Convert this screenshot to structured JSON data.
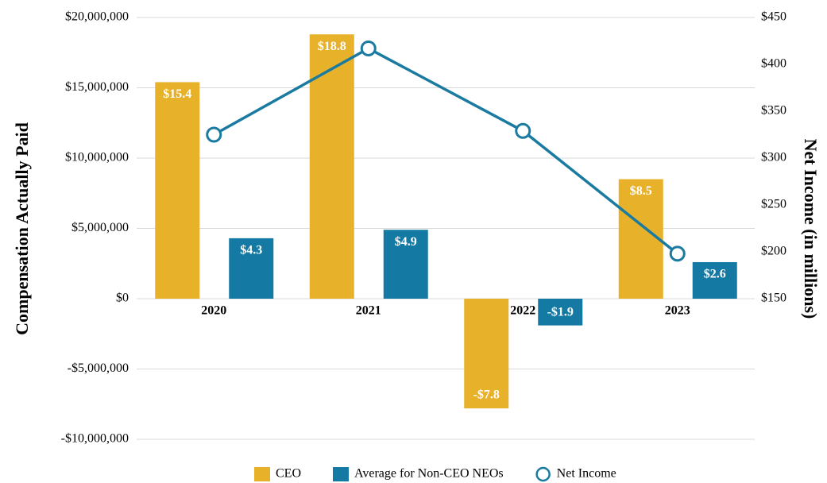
{
  "chart_data": {
    "type": "bar",
    "y_label": "Compensation Actually Paid",
    "y2_label": "Net Income (in millions)",
    "categories": [
      "2020",
      "2021",
      "2022",
      "2023"
    ],
    "series": [
      {
        "name": "CEO",
        "color": "#e8b12a",
        "values": [
          15400000,
          18800000,
          -7800000,
          8500000
        ],
        "value_labels": [
          "$15.4",
          "$18.8",
          "-$7.8",
          "$8.5"
        ]
      },
      {
        "name": "Average for Non-CEO NEOs",
        "color": "#1479a3",
        "values": [
          4300000,
          4900000,
          -1900000,
          2600000
        ],
        "value_labels": [
          "$4.3",
          "$4.9",
          "-$1.9",
          "$2.6"
        ]
      },
      {
        "name": "Net Income",
        "type": "line",
        "axis": "y2",
        "color": "#1a7aa0",
        "values": [
          325,
          417,
          329,
          198
        ]
      }
    ],
    "ylim": [
      -10000000,
      20000000
    ],
    "yticks": [
      {
        "value": -10000000,
        "label": "-$10,000,000"
      },
      {
        "value": -5000000,
        "label": "-$5,000,000"
      },
      {
        "value": 0,
        "label": "$0"
      },
      {
        "value": 5000000,
        "label": "$5,000,000"
      },
      {
        "value": 10000000,
        "label": "$10,000,000"
      },
      {
        "value": 15000000,
        "label": "$15,000,000"
      },
      {
        "value": 20000000,
        "label": "$20,000,000"
      }
    ],
    "y2lim": [
      0,
      450
    ],
    "y2ticks": [
      {
        "value": 150,
        "label": "$150"
      },
      {
        "value": 200,
        "label": "$200"
      },
      {
        "value": 250,
        "label": "$250"
      },
      {
        "value": 300,
        "label": "$300"
      },
      {
        "value": 350,
        "label": "$350"
      },
      {
        "value": 400,
        "label": "$400"
      },
      {
        "value": 450,
        "label": "$450"
      }
    ],
    "grid": true,
    "legend": "bottom"
  }
}
